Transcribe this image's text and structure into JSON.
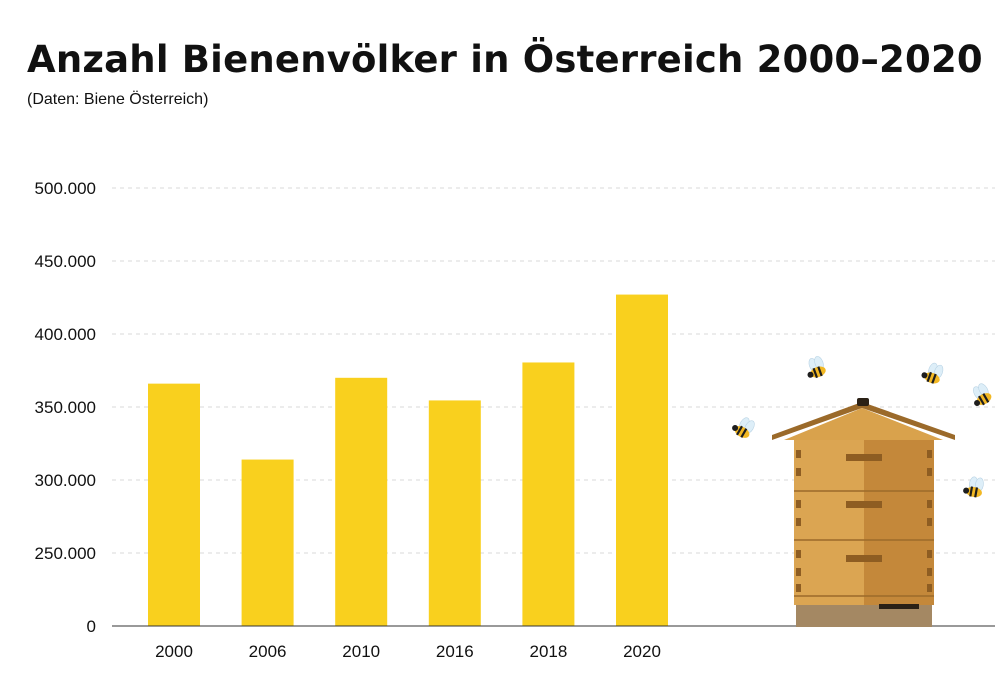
{
  "chart_data": {
    "type": "bar",
    "title": "Anzahl Bienenvölker in Österreich 2000–2020",
    "subtitle": "(Daten: Biene Österreich)",
    "categories": [
      "2000",
      "2006",
      "2010",
      "2016",
      "2018",
      "2020"
    ],
    "values": [
      366000,
      314000,
      370000,
      354500,
      380500,
      427000
    ],
    "ylim": [
      0,
      500000
    ],
    "yticks": [
      0,
      250000,
      300000,
      350000,
      400000,
      450000,
      500000
    ],
    "ytick_labels": [
      "0",
      "250.000",
      "300.000",
      "350.000",
      "400.000",
      "450.000",
      "500.000"
    ],
    "xlabel": "",
    "ylabel": "",
    "grid": true,
    "axis_break": true,
    "bar_color": "#F9D01E",
    "grid_color": "#d9d9d9",
    "illustration": "beehive-with-bees"
  }
}
